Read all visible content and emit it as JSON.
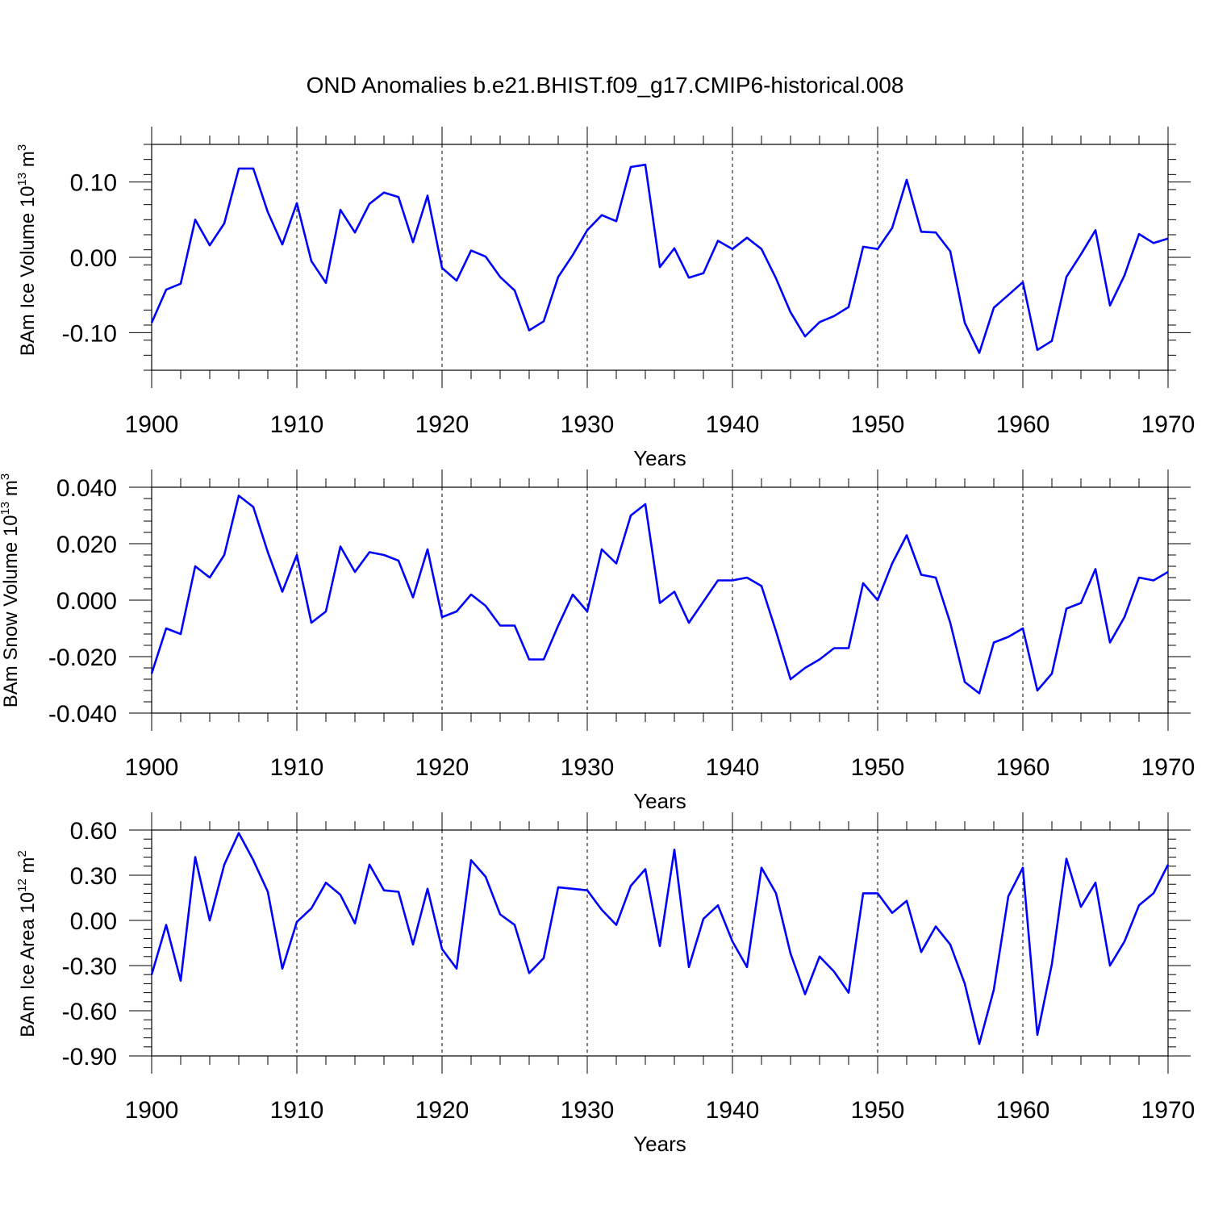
{
  "title": "OND Anomalies b.e21.BHIST.f09_g17.CMIP6-historical.008",
  "colors": {
    "series": "#0000ff",
    "axes": "#000000",
    "grid": "#000000"
  },
  "chart_data": [
    {
      "type": "line",
      "name": "ice-volume",
      "xlabel": "Years",
      "ylabel": {
        "main": "BAm Ice Volume 10",
        "exp": "13",
        "unit": " m",
        "unit_exp": "3"
      },
      "xlim": [
        1900,
        1970
      ],
      "ylim": [
        -0.15,
        0.15
      ],
      "xticks": [
        "1900",
        "1910",
        "1920",
        "1930",
        "1940",
        "1950",
        "1960",
        "1970"
      ],
      "yticks": [
        "-0.10",
        "0.00",
        "0.10"
      ],
      "ytick_values": [
        -0.1,
        0.0,
        0.1
      ],
      "x_start": 1900,
      "values": [
        -0.087,
        -0.043,
        -0.035,
        0.05,
        0.016,
        0.045,
        0.118,
        0.118,
        0.06,
        0.017,
        0.072,
        -0.005,
        -0.034,
        0.063,
        0.033,
        0.071,
        0.086,
        0.08,
        0.02,
        0.082,
        -0.014,
        -0.031,
        0.009,
        0.001,
        -0.026,
        -0.044,
        -0.097,
        -0.085,
        -0.026,
        0.003,
        0.036,
        0.056,
        0.048,
        0.12,
        0.123,
        -0.013,
        0.012,
        -0.027,
        -0.021,
        0.022,
        0.011,
        0.026,
        0.011,
        -0.028,
        -0.073,
        -0.105,
        -0.086,
        -0.078,
        -0.066,
        0.014,
        0.011,
        0.039,
        0.103,
        0.034,
        0.033,
        0.008,
        -0.087,
        -0.127,
        -0.067,
        -0.05,
        -0.033,
        -0.123,
        -0.111,
        -0.026,
        0.004,
        0.036,
        -0.064,
        -0.024,
        0.031,
        0.019,
        0.025
      ]
    },
    {
      "type": "line",
      "name": "snow-volume",
      "xlabel": "Years",
      "ylabel": {
        "main": "BAm Snow Volume 10",
        "exp": "13",
        "unit": " m",
        "unit_exp": "3"
      },
      "xlim": [
        1900,
        1970
      ],
      "ylim": [
        -0.04,
        0.04
      ],
      "xticks": [
        "1900",
        "1910",
        "1920",
        "1930",
        "1940",
        "1950",
        "1960",
        "1970"
      ],
      "yticks": [
        "-0.040",
        "-0.020",
        "0.000",
        "0.020",
        "0.040"
      ],
      "ytick_values": [
        -0.04,
        -0.02,
        0.0,
        0.02,
        0.04
      ],
      "x_start": 1900,
      "values": [
        -0.026,
        -0.01,
        -0.012,
        0.012,
        0.008,
        0.016,
        0.037,
        0.033,
        0.017,
        0.003,
        0.016,
        -0.008,
        -0.004,
        0.019,
        0.01,
        0.017,
        0.016,
        0.014,
        0.001,
        0.018,
        -0.006,
        -0.004,
        0.002,
        -0.002,
        -0.009,
        -0.009,
        -0.021,
        -0.021,
        -0.009,
        0.002,
        -0.004,
        0.018,
        0.013,
        0.03,
        0.034,
        -0.001,
        0.003,
        -0.008,
        -0.0005,
        0.007,
        0.007,
        0.008,
        0.005,
        -0.011,
        -0.028,
        -0.024,
        -0.021,
        -0.017,
        -0.017,
        0.006,
        0.0,
        0.013,
        0.023,
        0.009,
        0.008,
        -0.008,
        -0.029,
        -0.033,
        -0.015,
        -0.013,
        -0.01,
        -0.032,
        -0.026,
        -0.003,
        -0.001,
        0.011,
        -0.015,
        -0.006,
        0.008,
        0.007,
        0.01
      ]
    },
    {
      "type": "line",
      "name": "ice-area",
      "xlabel": "Years",
      "ylabel": {
        "main": "BAm Ice Area 10",
        "exp": "12",
        "unit": " m",
        "unit_exp": "2"
      },
      "xlim": [
        1900,
        1970
      ],
      "ylim": [
        -0.9,
        0.6
      ],
      "xticks": [
        "1900",
        "1910",
        "1920",
        "1930",
        "1940",
        "1950",
        "1960",
        "1970"
      ],
      "yticks": [
        "-0.90",
        "-0.60",
        "-0.30",
        "0.00",
        "0.30",
        "0.60"
      ],
      "ytick_values": [
        -0.9,
        -0.6,
        -0.3,
        0.0,
        0.3,
        0.6
      ],
      "x_start": 1900,
      "values": [
        -0.36,
        -0.03,
        -0.4,
        0.42,
        0.0,
        0.37,
        0.58,
        0.4,
        0.19,
        -0.32,
        -0.01,
        0.08,
        0.25,
        0.17,
        -0.02,
        0.37,
        0.2,
        0.19,
        -0.16,
        0.21,
        -0.19,
        -0.32,
        0.4,
        0.29,
        0.04,
        -0.03,
        -0.35,
        -0.25,
        0.22,
        0.21,
        0.2,
        0.07,
        -0.03,
        0.23,
        0.34,
        -0.17,
        0.47,
        -0.31,
        0.01,
        0.1,
        -0.14,
        -0.31,
        0.35,
        0.18,
        -0.22,
        -0.49,
        -0.24,
        -0.34,
        -0.48,
        0.18,
        0.18,
        0.05,
        0.13,
        -0.21,
        -0.04,
        -0.16,
        -0.42,
        -0.82,
        -0.46,
        0.16,
        0.35,
        -0.76,
        -0.29,
        0.41,
        0.09,
        0.25,
        -0.3,
        -0.14,
        0.1,
        0.18,
        0.37
      ]
    }
  ]
}
